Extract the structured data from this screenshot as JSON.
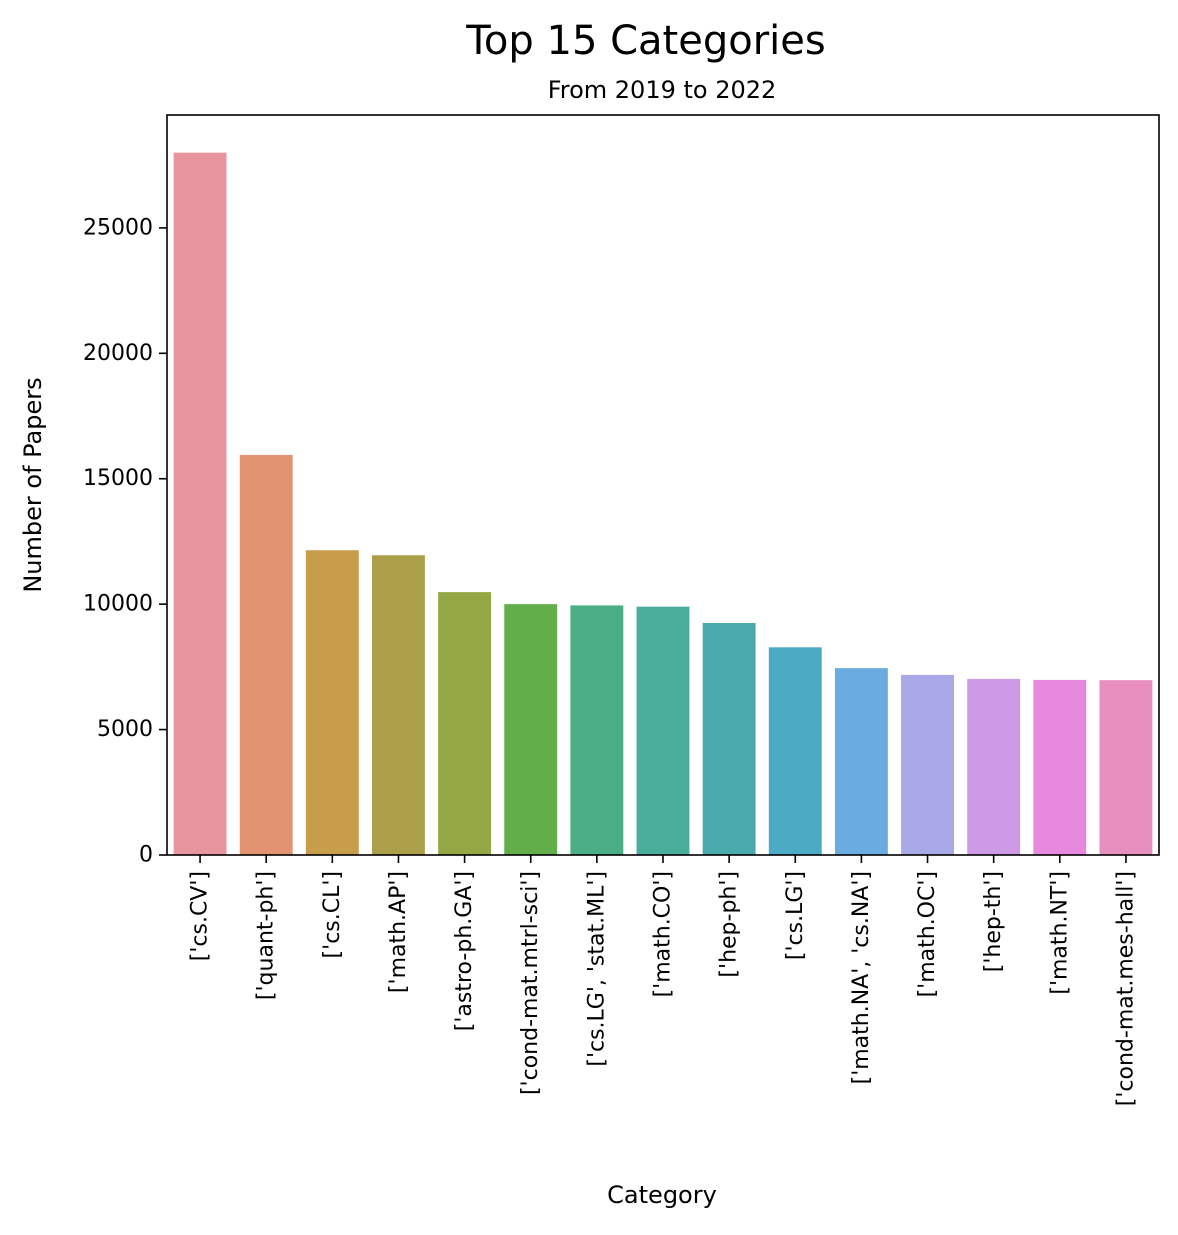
{
  "chart_data": {
    "type": "bar",
    "title": "Top 15 Categories",
    "subtitle": "From 2019 to 2022",
    "xlabel": "Category",
    "ylabel": "Number of Papers",
    "ylim": [
      0,
      29500
    ],
    "yticks": [
      0,
      5000,
      10000,
      15000,
      20000,
      25000
    ],
    "grid": false,
    "categories": [
      "['cs.CV']",
      "['quant-ph']",
      "['cs.CL']",
      "['math.AP']",
      "['astro-ph.GA']",
      "['cond-mat.mtrl-sci']",
      "['cs.LG', 'stat.ML']",
      "['math.CO']",
      "['hep-ph']",
      "['cs.LG']",
      "['math.NA', 'cs.NA']",
      "['math.OC']",
      "['hep-th']",
      "['math.NT']",
      "['cond-mat.mes-hall']"
    ],
    "values": [
      28000,
      15950,
      12150,
      11950,
      10480,
      10000,
      9950,
      9900,
      9250,
      8280,
      7450,
      7180,
      7020,
      6980,
      6970
    ],
    "colors": [
      "#e995a0",
      "#e29472",
      "#c79c4b",
      "#aba049",
      "#93a745",
      "#61ae4b",
      "#4bae86",
      "#4bae9c",
      "#4aa9ad",
      "#4baac4",
      "#6bace0",
      "#a9a8e9",
      "#cd9ae8",
      "#e689de",
      "#e88fbf"
    ]
  }
}
